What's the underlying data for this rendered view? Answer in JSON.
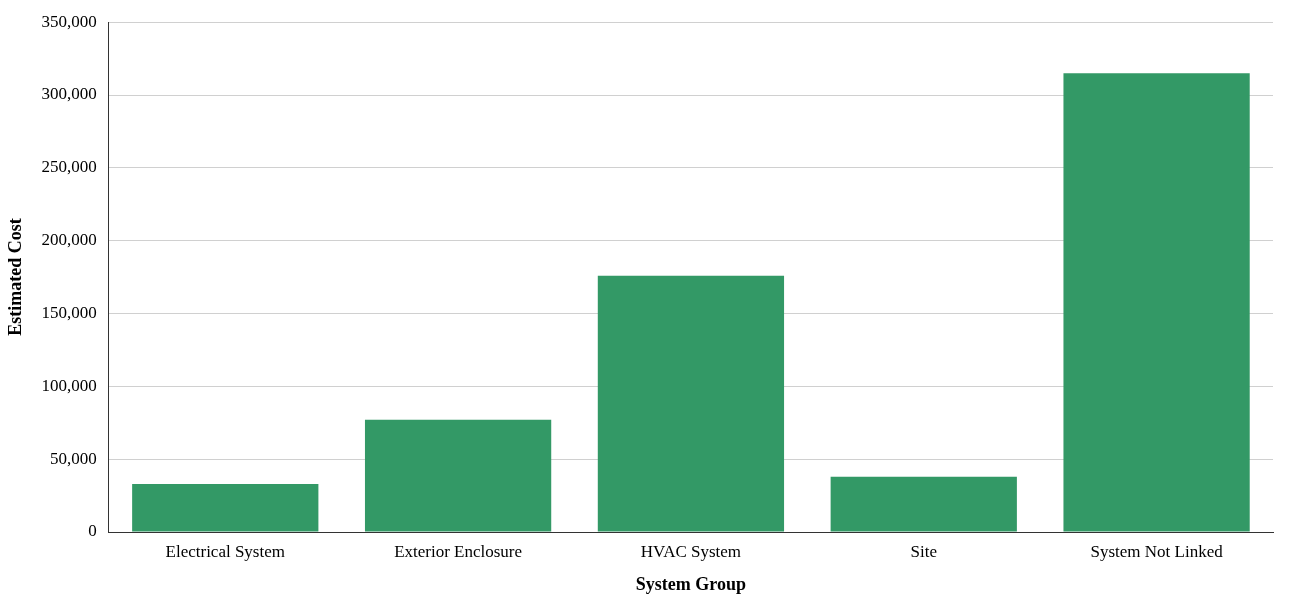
{
  "chart_data": {
    "type": "bar",
    "xlabel": "System Group",
    "ylabel": "Estimated Cost",
    "categories": [
      "Electrical System",
      "Exterior Enclosure",
      "HVAC System",
      "Site",
      "System Not Linked"
    ],
    "values": [
      33000,
      77000,
      176000,
      38000,
      315000
    ],
    "color": "#339966",
    "ylim": [
      0,
      350000
    ],
    "yticks": [
      0,
      {
        "value": 50000,
        "label": "50,000"
      },
      {
        "value": 100000,
        "label": "100,000"
      },
      {
        "value": 150000,
        "label": "150,000"
      },
      {
        "value": 200000,
        "label": "200,000"
      },
      {
        "value": 250000,
        "label": "250,000"
      },
      {
        "value": 300000,
        "label": "300,000"
      },
      {
        "value": 350000,
        "label": "350,000"
      }
    ],
    "grid": "y",
    "legend": false
  }
}
